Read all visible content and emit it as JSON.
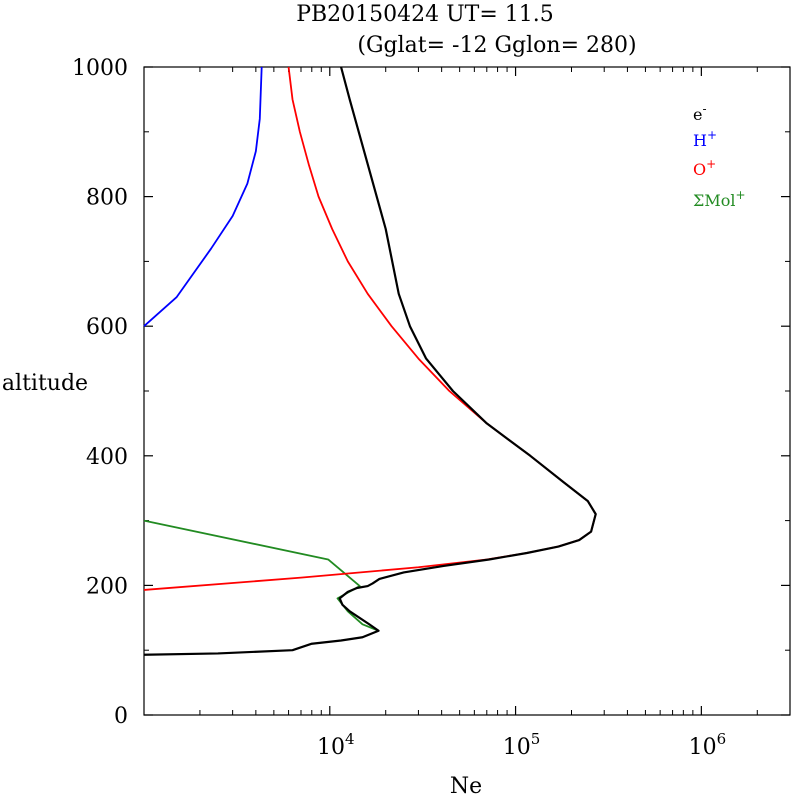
{
  "chart_data": {
    "type": "line",
    "title_line1": "PB20150424   UT=  11.5",
    "title_line2": "(Gglat= -12   Gglon=  280)",
    "xlabel": "Ne",
    "ylabel": "altitude",
    "xscale": "log",
    "xlim": [
      1000,
      3000000
    ],
    "ylim": [
      0,
      1000
    ],
    "yticks": [
      0,
      200,
      400,
      600,
      800,
      1000
    ],
    "ytick_labels": [
      "0",
      "200",
      "400",
      "600",
      "800",
      "1000"
    ],
    "xticks": [
      10000,
      100000,
      1000000
    ],
    "xtick_labels": [
      {
        "base": "10",
        "exp": "4"
      },
      {
        "base": "10",
        "exp": "5"
      },
      {
        "base": "10",
        "exp": "6"
      }
    ],
    "legend_position": "top-right",
    "series": [
      {
        "name": "e-",
        "label_base": "e",
        "label_sup": "-",
        "color": "#000000",
        "points": [
          [
            1000,
            93
          ],
          [
            2500,
            95
          ],
          [
            6300,
            100
          ],
          [
            8000,
            110
          ],
          [
            11500,
            115
          ],
          [
            15000,
            120
          ],
          [
            18300,
            130
          ],
          [
            16300,
            140
          ],
          [
            12800,
            160
          ],
          [
            11700,
            170
          ],
          [
            11300,
            180
          ],
          [
            12500,
            190
          ],
          [
            14000,
            196
          ],
          [
            16000,
            199
          ],
          [
            17000,
            203
          ],
          [
            18500,
            210
          ],
          [
            25000,
            220
          ],
          [
            41000,
            230
          ],
          [
            72000,
            240
          ],
          [
            115000,
            250
          ],
          [
            170000,
            260
          ],
          [
            220000,
            270
          ],
          [
            255000,
            283
          ],
          [
            270000,
            310
          ],
          [
            245000,
            330
          ],
          [
            180000,
            360
          ],
          [
            120000,
            400
          ],
          [
            70000,
            450
          ],
          [
            46000,
            500
          ],
          [
            33000,
            550
          ],
          [
            27000,
            600
          ],
          [
            23500,
            650
          ],
          [
            20000,
            750
          ],
          [
            16000,
            850
          ],
          [
            12800,
            950
          ],
          [
            11500,
            1000
          ]
        ]
      },
      {
        "name": "H+",
        "label_base": "H",
        "label_sup": "+",
        "color": "#0000ff",
        "points": [
          [
            1000,
            600
          ],
          [
            1500,
            645
          ],
          [
            2300,
            720
          ],
          [
            3000,
            770
          ],
          [
            3600,
            820
          ],
          [
            4000,
            870
          ],
          [
            4200,
            920
          ],
          [
            4300,
            1000
          ]
        ]
      },
      {
        "name": "O+",
        "label_base": "O",
        "label_sup": "+",
        "color": "#ff0000",
        "points": [
          [
            1000,
            193
          ],
          [
            7000,
            212
          ],
          [
            30000,
            228
          ],
          [
            70000,
            240
          ],
          [
            115000,
            250
          ],
          [
            170000,
            260
          ],
          [
            220000,
            270
          ],
          [
            255000,
            283
          ],
          [
            270000,
            310
          ],
          [
            245000,
            330
          ],
          [
            180000,
            360
          ],
          [
            120000,
            400
          ],
          [
            70000,
            450
          ],
          [
            44000,
            500
          ],
          [
            30000,
            550
          ],
          [
            21500,
            600
          ],
          [
            16000,
            650
          ],
          [
            12500,
            700
          ],
          [
            10300,
            750
          ],
          [
            8700,
            800
          ],
          [
            7700,
            850
          ],
          [
            6900,
            900
          ],
          [
            6300,
            950
          ],
          [
            6000,
            1000
          ]
        ]
      },
      {
        "name": "ΣMol+",
        "label_base": "ΣMol",
        "label_sup": "+",
        "color": "#228b22",
        "points": [
          [
            1000,
            300
          ],
          [
            9800,
            240
          ],
          [
            14500,
            199
          ],
          [
            11000,
            180
          ],
          [
            12500,
            160
          ],
          [
            15000,
            140
          ],
          [
            18300,
            130
          ]
        ]
      }
    ]
  }
}
